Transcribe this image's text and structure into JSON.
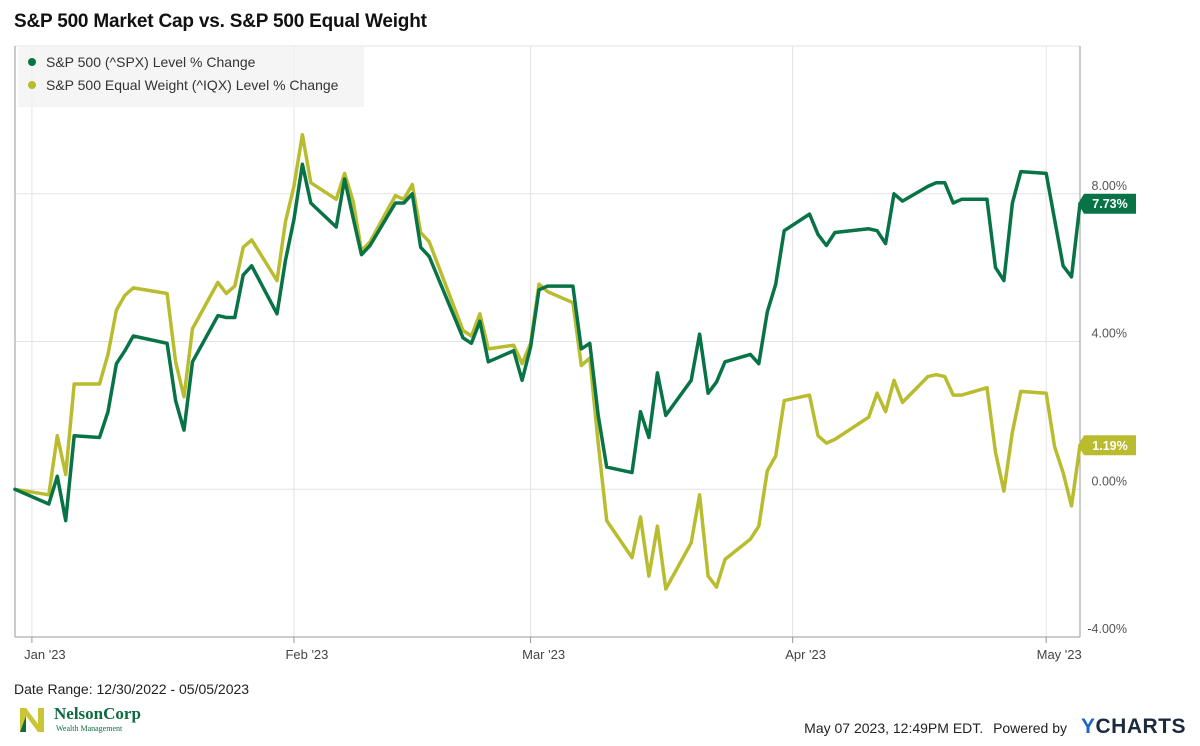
{
  "title": "S&P 500 Market Cap vs. S&P 500 Equal Weight",
  "footer": {
    "date_range": "Date Range: 12/30/2022 - 05/05/2023",
    "timestamp": "May 07 2023, 12:49PM EDT.",
    "powered_by": "Powered by",
    "brand_y": "Y",
    "brand_rest": "CHARTS",
    "logo_name": "NelsonCorp",
    "logo_sub": "Wealth Management"
  },
  "chart_data": {
    "type": "line",
    "title": "S&P 500 Market Cap vs. S&P 500 Equal Weight",
    "xlabel": "",
    "ylabel": "",
    "x_tick_labels": [
      "Jan '23",
      "Feb '23",
      "Mar '23",
      "Apr '23",
      "May '23"
    ],
    "y_tick_labels": [
      "8.00%",
      "4.00%",
      "0.00%",
      "-4.00%"
    ],
    "y_ticks": [
      8,
      4,
      0,
      -4
    ],
    "ylim": [
      -4,
      12
    ],
    "grid": true,
    "legend_position": "top-left",
    "series": [
      {
        "name": "S&P 500 (^SPX) Level % Change",
        "color": "#087346",
        "end_label": "7.73%",
        "values": [
          [
            "2022-12-30",
            0.0
          ],
          [
            "2023-01-03",
            -0.4
          ],
          [
            "2023-01-04",
            0.35
          ],
          [
            "2023-01-05",
            -0.85
          ],
          [
            "2023-01-06",
            1.45
          ],
          [
            "2023-01-09",
            1.4
          ],
          [
            "2023-01-10",
            2.1
          ],
          [
            "2023-01-11",
            3.4
          ],
          [
            "2023-01-12",
            3.75
          ],
          [
            "2023-01-13",
            4.15
          ],
          [
            "2023-01-17",
            3.95
          ],
          [
            "2023-01-18",
            2.4
          ],
          [
            "2023-01-19",
            1.6
          ],
          [
            "2023-01-20",
            3.45
          ],
          [
            "2023-01-23",
            4.7
          ],
          [
            "2023-01-24",
            4.65
          ],
          [
            "2023-01-25",
            4.65
          ],
          [
            "2023-01-26",
            5.8
          ],
          [
            "2023-01-27",
            6.05
          ],
          [
            "2023-01-30",
            4.75
          ],
          [
            "2023-01-31",
            6.2
          ],
          [
            "2023-02-01",
            7.3
          ],
          [
            "2023-02-02",
            8.8
          ],
          [
            "2023-02-03",
            7.75
          ],
          [
            "2023-02-06",
            7.1
          ],
          [
            "2023-02-07",
            8.4
          ],
          [
            "2023-02-08",
            7.35
          ],
          [
            "2023-02-09",
            6.35
          ],
          [
            "2023-02-10",
            6.6
          ],
          [
            "2023-02-13",
            7.75
          ],
          [
            "2023-02-14",
            7.75
          ],
          [
            "2023-02-15",
            8.0
          ],
          [
            "2023-02-16",
            6.55
          ],
          [
            "2023-02-17",
            6.3
          ],
          [
            "2023-02-21",
            4.1
          ],
          [
            "2023-02-22",
            3.95
          ],
          [
            "2023-02-23",
            4.55
          ],
          [
            "2023-02-24",
            3.45
          ],
          [
            "2023-02-27",
            3.75
          ],
          [
            "2023-02-28",
            2.95
          ],
          [
            "2023-03-01",
            3.85
          ],
          [
            "2023-03-02",
            5.4
          ],
          [
            "2023-03-03",
            5.5
          ],
          [
            "2023-03-06",
            5.5
          ],
          [
            "2023-03-07",
            3.8
          ],
          [
            "2023-03-08",
            3.95
          ],
          [
            "2023-03-09",
            2.0
          ],
          [
            "2023-03-10",
            0.6
          ],
          [
            "2023-03-13",
            0.45
          ],
          [
            "2023-03-14",
            2.1
          ],
          [
            "2023-03-15",
            1.4
          ],
          [
            "2023-03-16",
            3.15
          ],
          [
            "2023-03-17",
            2.0
          ],
          [
            "2023-03-20",
            2.95
          ],
          [
            "2023-03-21",
            4.2
          ],
          [
            "2023-03-22",
            2.6
          ],
          [
            "2023-03-23",
            2.9
          ],
          [
            "2023-03-24",
            3.45
          ],
          [
            "2023-03-27",
            3.65
          ],
          [
            "2023-03-28",
            3.4
          ],
          [
            "2023-03-29",
            4.8
          ],
          [
            "2023-03-30",
            5.55
          ],
          [
            "2023-03-31",
            7.0
          ],
          [
            "2023-04-03",
            7.45
          ],
          [
            "2023-04-04",
            6.9
          ],
          [
            "2023-04-05",
            6.6
          ],
          [
            "2023-04-06",
            6.95
          ],
          [
            "2023-04-10",
            7.05
          ],
          [
            "2023-04-11",
            7.0
          ],
          [
            "2023-04-12",
            6.65
          ],
          [
            "2023-04-13",
            8.0
          ],
          [
            "2023-04-14",
            7.8
          ],
          [
            "2023-04-17",
            8.2
          ],
          [
            "2023-04-18",
            8.3
          ],
          [
            "2023-04-19",
            8.3
          ],
          [
            "2023-04-20",
            7.75
          ],
          [
            "2023-04-21",
            7.85
          ],
          [
            "2023-04-24",
            7.85
          ],
          [
            "2023-04-25",
            6.0
          ],
          [
            "2023-04-26",
            5.65
          ],
          [
            "2023-04-27",
            7.75
          ],
          [
            "2023-04-28",
            8.6
          ],
          [
            "2023-05-01",
            8.55
          ],
          [
            "2023-05-02",
            7.3
          ],
          [
            "2023-05-03",
            6.05
          ],
          [
            "2023-05-04",
            5.75
          ],
          [
            "2023-05-05",
            7.73
          ]
        ]
      },
      {
        "name": "S&P 500 Equal Weight (^IQX) Level % Change",
        "color": "#b9bc2e",
        "end_label": "1.19%",
        "values": [
          [
            "2022-12-30",
            0.0
          ],
          [
            "2023-01-03",
            -0.15
          ],
          [
            "2023-01-04",
            1.45
          ],
          [
            "2023-01-05",
            0.4
          ],
          [
            "2023-01-06",
            2.85
          ],
          [
            "2023-01-09",
            2.85
          ],
          [
            "2023-01-10",
            3.65
          ],
          [
            "2023-01-11",
            4.85
          ],
          [
            "2023-01-12",
            5.25
          ],
          [
            "2023-01-13",
            5.45
          ],
          [
            "2023-01-17",
            5.3
          ],
          [
            "2023-01-18",
            3.45
          ],
          [
            "2023-01-19",
            2.5
          ],
          [
            "2023-01-20",
            4.35
          ],
          [
            "2023-01-23",
            5.6
          ],
          [
            "2023-01-24",
            5.3
          ],
          [
            "2023-01-25",
            5.5
          ],
          [
            "2023-01-26",
            6.55
          ],
          [
            "2023-01-27",
            6.75
          ],
          [
            "2023-01-30",
            5.65
          ],
          [
            "2023-01-31",
            7.25
          ],
          [
            "2023-02-01",
            8.2
          ],
          [
            "2023-02-02",
            9.6
          ],
          [
            "2023-02-03",
            8.3
          ],
          [
            "2023-02-06",
            7.85
          ],
          [
            "2023-02-07",
            8.55
          ],
          [
            "2023-02-08",
            7.8
          ],
          [
            "2023-02-09",
            6.45
          ],
          [
            "2023-02-10",
            6.7
          ],
          [
            "2023-02-13",
            7.95
          ],
          [
            "2023-02-14",
            7.85
          ],
          [
            "2023-02-15",
            8.25
          ],
          [
            "2023-02-16",
            6.95
          ],
          [
            "2023-02-17",
            6.7
          ],
          [
            "2023-02-21",
            4.3
          ],
          [
            "2023-02-22",
            4.15
          ],
          [
            "2023-02-23",
            4.75
          ],
          [
            "2023-02-24",
            3.8
          ],
          [
            "2023-02-27",
            3.9
          ],
          [
            "2023-02-28",
            3.4
          ],
          [
            "2023-03-01",
            3.95
          ],
          [
            "2023-03-02",
            5.55
          ],
          [
            "2023-03-03",
            5.35
          ],
          [
            "2023-03-06",
            5.05
          ],
          [
            "2023-03-07",
            3.35
          ],
          [
            "2023-03-08",
            3.55
          ],
          [
            "2023-03-09",
            1.25
          ],
          [
            "2023-03-10",
            -0.85
          ],
          [
            "2023-03-13",
            -1.85
          ],
          [
            "2023-03-14",
            -0.75
          ],
          [
            "2023-03-15",
            -2.35
          ],
          [
            "2023-03-16",
            -1.0
          ],
          [
            "2023-03-17",
            -2.7
          ],
          [
            "2023-03-20",
            -1.45
          ],
          [
            "2023-03-21",
            -0.15
          ],
          [
            "2023-03-22",
            -2.35
          ],
          [
            "2023-03-23",
            -2.65
          ],
          [
            "2023-03-24",
            -1.9
          ],
          [
            "2023-03-27",
            -1.35
          ],
          [
            "2023-03-28",
            -1.0
          ],
          [
            "2023-03-29",
            0.5
          ],
          [
            "2023-03-30",
            0.9
          ],
          [
            "2023-03-31",
            2.4
          ],
          [
            "2023-04-03",
            2.55
          ],
          [
            "2023-04-04",
            1.45
          ],
          [
            "2023-04-05",
            1.25
          ],
          [
            "2023-04-06",
            1.35
          ],
          [
            "2023-04-10",
            1.95
          ],
          [
            "2023-04-11",
            2.6
          ],
          [
            "2023-04-12",
            2.1
          ],
          [
            "2023-04-13",
            2.95
          ],
          [
            "2023-04-14",
            2.35
          ],
          [
            "2023-04-17",
            3.05
          ],
          [
            "2023-04-18",
            3.1
          ],
          [
            "2023-04-19",
            3.05
          ],
          [
            "2023-04-20",
            2.55
          ],
          [
            "2023-04-21",
            2.55
          ],
          [
            "2023-04-24",
            2.75
          ],
          [
            "2023-04-25",
            1.0
          ],
          [
            "2023-04-26",
            -0.05
          ],
          [
            "2023-04-27",
            1.55
          ],
          [
            "2023-04-28",
            2.65
          ],
          [
            "2023-05-01",
            2.6
          ],
          [
            "2023-05-02",
            1.15
          ],
          [
            "2023-05-03",
            0.45
          ],
          [
            "2023-05-04",
            -0.45
          ],
          [
            "2023-05-05",
            1.19
          ]
        ]
      }
    ]
  }
}
